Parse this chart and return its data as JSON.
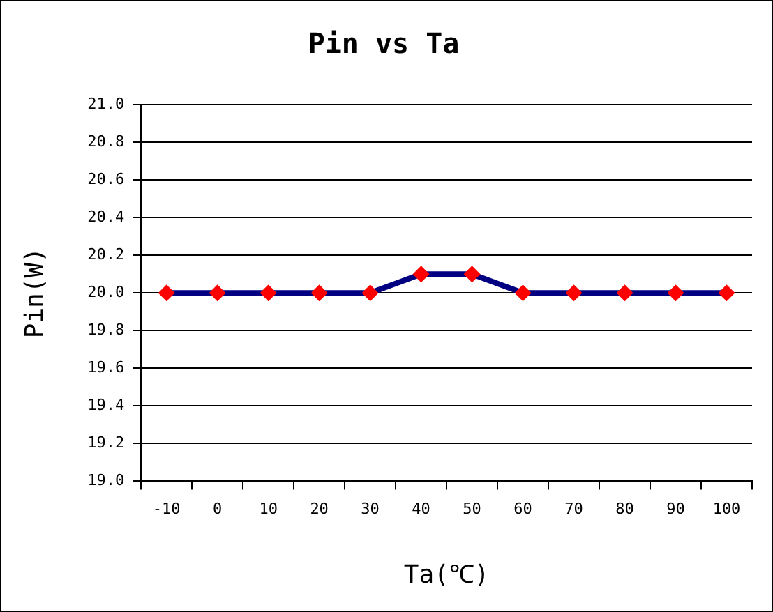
{
  "chart_data": {
    "type": "line",
    "title": "Pin vs Ta",
    "xlabel": "Ta(℃)",
    "ylabel": "Pin(W)",
    "categories": [
      "-10",
      "0",
      "10",
      "20",
      "30",
      "40",
      "50",
      "60",
      "70",
      "80",
      "90",
      "100"
    ],
    "series": [
      {
        "color": "#000080",
        "colors": [
          "#ff0000",
          "#ff0000",
          "#ff0000",
          "#ff0000",
          "#ff0000",
          "#ff0000",
          "#ff0000",
          "#ff0000",
          "#ff0000",
          "#ff0000",
          "#ff0000",
          "#ff0000"
        ],
        "values": [
          20.0,
          20.0,
          20.0,
          20.0,
          20.0,
          20.1,
          20.1,
          20.0,
          20.0,
          20.0,
          20.0,
          20.0
        ]
      }
    ],
    "ylim": [
      19.0,
      21.0
    ],
    "yticks": [
      {
        "value": 19.0,
        "label": "19.0"
      },
      {
        "value": 19.2,
        "label": "19.2"
      },
      {
        "value": 19.4,
        "label": "19.4"
      },
      {
        "value": 19.6,
        "label": "19.6"
      },
      {
        "value": 19.8,
        "label": "19.8"
      },
      {
        "value": 20.0,
        "label": "20.0"
      },
      {
        "value": 20.2,
        "label": "20.2"
      },
      {
        "value": 20.4,
        "label": "20.4"
      },
      {
        "value": 20.6,
        "label": "20.6"
      },
      {
        "value": 20.8,
        "label": "20.8"
      },
      {
        "value": 21.0,
        "label": "21.0"
      }
    ],
    "grid": "y",
    "legend": false,
    "marker": "diamond",
    "line_style": "solid"
  }
}
